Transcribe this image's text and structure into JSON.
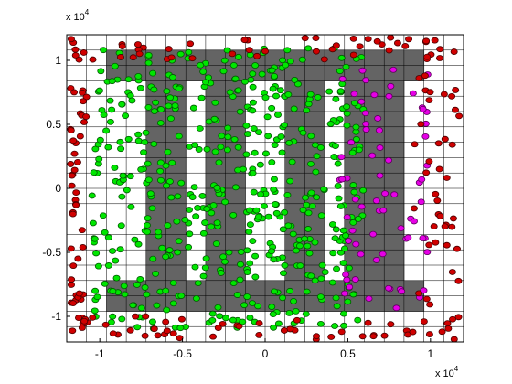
{
  "chart_data": {
    "type": "scatter",
    "title": "",
    "xlabel": "",
    "ylabel": "",
    "xlim": [
      -1.2,
      1.2
    ],
    "ylim": [
      -1.2,
      1.2
    ],
    "x_scale_label": "x 10",
    "x_scale_exp": "4",
    "y_scale_label": "x 10",
    "y_scale_exp": "4",
    "x_ticks": [
      -1,
      -0.5,
      0,
      0.5,
      1
    ],
    "x_tick_labels": [
      "-1",
      "-0.5",
      "0",
      "0.5",
      "1"
    ],
    "y_ticks": [
      -1,
      -0.5,
      0,
      0.5,
      1
    ],
    "y_tick_labels": [
      "-1",
      "-0.5",
      "0",
      "0.5",
      "1"
    ],
    "grid": {
      "cells": 20,
      "min": -1.2,
      "max": 1.2
    },
    "grid_on": true,
    "shaded_cells": [
      [
        2,
        2
      ],
      [
        2,
        3
      ],
      [
        3,
        2
      ],
      [
        3,
        3
      ],
      [
        4,
        2
      ],
      [
        4,
        3
      ],
      [
        5,
        2
      ],
      [
        5,
        3
      ],
      [
        6,
        2
      ],
      [
        6,
        3
      ],
      [
        7,
        2
      ],
      [
        7,
        3
      ],
      [
        8,
        2
      ],
      [
        8,
        3
      ],
      [
        9,
        2
      ],
      [
        9,
        3
      ],
      [
        10,
        2
      ],
      [
        10,
        3
      ],
      [
        11,
        2
      ],
      [
        11,
        3
      ],
      [
        12,
        2
      ],
      [
        12,
        3
      ],
      [
        13,
        2
      ],
      [
        13,
        3
      ],
      [
        14,
        2
      ],
      [
        14,
        3
      ],
      [
        15,
        2
      ],
      [
        15,
        3
      ],
      [
        16,
        2
      ],
      [
        16,
        3
      ],
      [
        17,
        2
      ],
      [
        17,
        3
      ],
      [
        2,
        16
      ],
      [
        2,
        17
      ],
      [
        3,
        16
      ],
      [
        3,
        17
      ],
      [
        4,
        16
      ],
      [
        4,
        17
      ],
      [
        5,
        16
      ],
      [
        5,
        17
      ],
      [
        6,
        16
      ],
      [
        6,
        17
      ],
      [
        7,
        16
      ],
      [
        7,
        17
      ],
      [
        8,
        16
      ],
      [
        8,
        17
      ],
      [
        9,
        16
      ],
      [
        9,
        17
      ],
      [
        10,
        16
      ],
      [
        10,
        17
      ],
      [
        11,
        16
      ],
      [
        11,
        17
      ],
      [
        12,
        16
      ],
      [
        12,
        17
      ],
      [
        13,
        16
      ],
      [
        13,
        17
      ],
      [
        14,
        16
      ],
      [
        14,
        17
      ],
      [
        15,
        16
      ],
      [
        15,
        17
      ],
      [
        16,
        16
      ],
      [
        16,
        17
      ],
      [
        17,
        16
      ],
      [
        17,
        17
      ],
      [
        4,
        4
      ],
      [
        5,
        4
      ],
      [
        4,
        5
      ],
      [
        5,
        5
      ],
      [
        4,
        6
      ],
      [
        5,
        6
      ],
      [
        4,
        7
      ],
      [
        5,
        7
      ],
      [
        4,
        8
      ],
      [
        5,
        8
      ],
      [
        4,
        9
      ],
      [
        5,
        9
      ],
      [
        4,
        10
      ],
      [
        5,
        10
      ],
      [
        4,
        11
      ],
      [
        5,
        11
      ],
      [
        4,
        12
      ],
      [
        5,
        12
      ],
      [
        4,
        13
      ],
      [
        5,
        13
      ],
      [
        4,
        14
      ],
      [
        5,
        14
      ],
      [
        4,
        15
      ],
      [
        5,
        15
      ],
      [
        14,
        4
      ],
      [
        15,
        4
      ],
      [
        14,
        5
      ],
      [
        15,
        5
      ],
      [
        14,
        6
      ],
      [
        15,
        6
      ],
      [
        14,
        7
      ],
      [
        15,
        7
      ],
      [
        14,
        8
      ],
      [
        15,
        8
      ],
      [
        14,
        9
      ],
      [
        15,
        9
      ],
      [
        14,
        10
      ],
      [
        15,
        10
      ],
      [
        14,
        11
      ],
      [
        15,
        11
      ],
      [
        14,
        12
      ],
      [
        15,
        12
      ],
      [
        14,
        13
      ],
      [
        15,
        13
      ],
      [
        14,
        14
      ],
      [
        15,
        14
      ],
      [
        14,
        15
      ],
      [
        15,
        15
      ],
      [
        11,
        14
      ],
      [
        12,
        14
      ],
      [
        13,
        14
      ],
      [
        11,
        15
      ],
      [
        12,
        15
      ],
      [
        13,
        15
      ],
      [
        3,
        7
      ],
      [
        4,
        6
      ]
    ],
    "shade_color": "#646464",
    "series": [
      {
        "marker": "circle",
        "color": "#00e600",
        "edge": "#005a00",
        "points": []
      },
      {
        "marker": "circle",
        "color": "#e600e6",
        "edge": "#5a005a",
        "points": []
      },
      {
        "marker": "circle",
        "color": "#d00000",
        "edge": "#4a0000",
        "points": []
      }
    ],
    "generator_note_free": true
  }
}
